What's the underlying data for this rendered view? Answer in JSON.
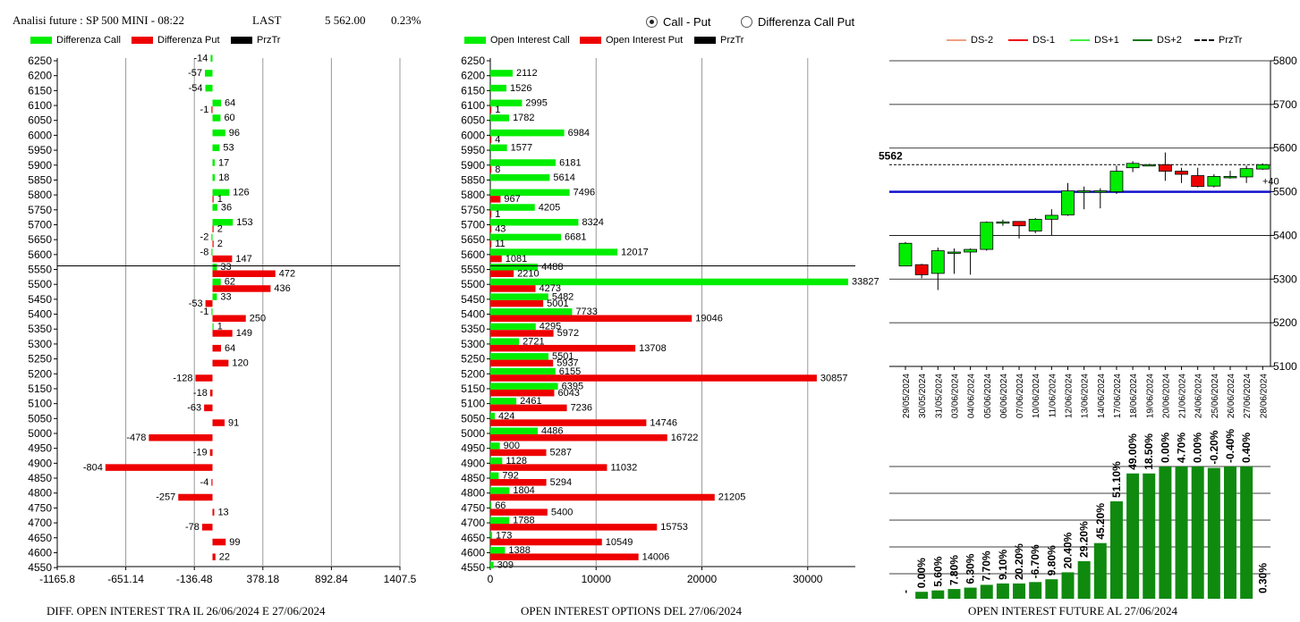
{
  "header": {
    "title": "Analisi future : SP 500 MINI - 08:22",
    "last_label": "LAST",
    "last_value": "5 562.00",
    "change": "0.23%"
  },
  "radio": [
    {
      "label": "Call - Put",
      "selected": true
    },
    {
      "label": "Differenza Call Put",
      "selected": false
    }
  ],
  "panel1": {
    "legend": [
      {
        "label": "Differenza Call",
        "color": "#00ee00"
      },
      {
        "label": "Differenza Put",
        "color": "#ee0000"
      },
      {
        "label": "PrzTr",
        "color": "#000000"
      }
    ],
    "title": "DIFF. OPEN INTEREST TRA IL 26/06/2024 E 27/06/2024"
  },
  "panel2": {
    "legend": [
      {
        "label": "Open Interest Call",
        "color": "#00ee00"
      },
      {
        "label": "Open Interest Put",
        "color": "#ee0000"
      },
      {
        "label": "PrzTr",
        "color": "#000000"
      }
    ],
    "title": "OPEN INTEREST OPTIONS DEL 27/06/2024"
  },
  "panel3": {
    "legend": [
      {
        "label": "DS-2",
        "color": "#f0a080",
        "style": "solid"
      },
      {
        "label": "DS-1",
        "color": "#ee0000",
        "style": "solid"
      },
      {
        "label": "DS+1",
        "color": "#44ee44",
        "style": "solid"
      },
      {
        "label": "DS+2",
        "color": "#117711",
        "style": "solid"
      },
      {
        "label": "PrzTr",
        "color": "#000000",
        "style": "dashed"
      }
    ],
    "title": "OPEN INTEREST FUTURE AL 27/06/2024"
  },
  "chart_data": [
    {
      "type": "bar",
      "orientation": "horizontal",
      "categories": [
        "6250",
        "6200",
        "6150",
        "6100",
        "6050",
        "6000",
        "5950",
        "5900",
        "5850",
        "5800",
        "5750",
        "5700",
        "5650",
        "5600",
        "5550",
        "5500",
        "5450",
        "5400",
        "5350",
        "5300",
        "5250",
        "5200",
        "5150",
        "5100",
        "5050",
        "5000",
        "4950",
        "4900",
        "4850",
        "4800",
        "4750",
        "4700",
        "4650",
        "4600",
        "4550"
      ],
      "series": [
        {
          "name": "Differenza Call",
          "values": [
            -14,
            -57,
            -54,
            64,
            60,
            96,
            53,
            17,
            18,
            126,
            36,
            153,
            -2,
            -8,
            33,
            62,
            33,
            -1,
            1,
            null,
            null,
            null,
            null,
            null,
            null,
            null,
            null,
            null,
            null,
            null,
            null,
            null,
            null,
            null,
            null
          ]
        },
        {
          "name": "Differenza Put",
          "values": [
            null,
            null,
            null,
            -1,
            null,
            null,
            null,
            null,
            null,
            1,
            null,
            2,
            2,
            147,
            472,
            436,
            -53,
            250,
            149,
            64,
            120,
            -128,
            -18,
            -63,
            91,
            -478,
            -19,
            -804,
            -4,
            -257,
            13,
            -78,
            99,
            22,
            null
          ]
        }
      ],
      "xticks": [
        "-1165.8",
        "-651.14",
        "-136.48",
        "378.18",
        "892.84",
        "1407.5"
      ],
      "xlim": [
        -1165.8,
        1407.5
      ],
      "przTr": 5562
    },
    {
      "type": "bar",
      "orientation": "horizontal",
      "categories": [
        "6250",
        "6200",
        "6150",
        "6100",
        "6050",
        "6000",
        "5950",
        "5900",
        "5850",
        "5800",
        "5750",
        "5700",
        "5650",
        "5600",
        "5550",
        "5500",
        "5450",
        "5400",
        "5350",
        "5300",
        "5250",
        "5200",
        "5150",
        "5100",
        "5050",
        "5000",
        "4950",
        "4900",
        "4850",
        "4800",
        "4750",
        "4700",
        "4650",
        "4600",
        "4550"
      ],
      "series": [
        {
          "name": "Open Interest Call",
          "values": [
            null,
            2112,
            1526,
            2995,
            1782,
            6984,
            1577,
            6181,
            5614,
            7496,
            4205,
            8324,
            6681,
            12017,
            4488,
            33827,
            5482,
            7733,
            4295,
            2721,
            5501,
            6155,
            6395,
            2461,
            424,
            4486,
            900,
            1128,
            792,
            1804,
            66,
            1788,
            173,
            1388,
            309
          ]
        },
        {
          "name": "Open Interest Put",
          "values": [
            null,
            null,
            null,
            1,
            null,
            4,
            null,
            8,
            null,
            967,
            1,
            43,
            11,
            1081,
            2210,
            4273,
            5001,
            19046,
            5972,
            13708,
            5937,
            30857,
            6043,
            7236,
            14746,
            16722,
            5287,
            11032,
            5294,
            21205,
            5400,
            15753,
            10549,
            14006,
            null
          ]
        }
      ],
      "xticks": [
        "0",
        "10000",
        "20000",
        "30000"
      ],
      "xlim": [
        0,
        34500
      ],
      "przTr": 5562
    },
    {
      "type": "candlestick",
      "dates": [
        "29/05/2024",
        "30/05/2024",
        "31/05/2024",
        "03/06/2024",
        "04/06/2024",
        "05/06/2024",
        "06/06/2024",
        "07/06/2024",
        "10/06/2024",
        "11/06/2024",
        "12/06/2024",
        "13/06/2024",
        "14/06/2024",
        "17/06/2024",
        "18/06/2024",
        "19/06/2024",
        "20/06/2024",
        "21/06/2024",
        "24/06/2024",
        "25/06/2024",
        "26/06/2024",
        "27/06/2024",
        "28/06/2024"
      ],
      "ohlc": [
        [
          5330,
          5385,
          5330,
          5382
        ],
        [
          5333,
          5335,
          5302,
          5310
        ],
        [
          5313,
          5372,
          5275,
          5365
        ],
        [
          5360,
          5370,
          5312,
          5362
        ],
        [
          5362,
          5370,
          5310,
          5368
        ],
        [
          5368,
          5432,
          5365,
          5430
        ],
        [
          5428,
          5436,
          5422,
          5431
        ],
        [
          5432,
          5432,
          5393,
          5422
        ],
        [
          5410,
          5440,
          5405,
          5437
        ],
        [
          5437,
          5460,
          5400,
          5446
        ],
        [
          5447,
          5520,
          5445,
          5502
        ],
        [
          5502,
          5512,
          5460,
          5502
        ],
        [
          5502,
          5508,
          5462,
          5502
        ],
        [
          5500,
          5560,
          5495,
          5547
        ],
        [
          5555,
          5570,
          5545,
          5565
        ],
        [
          5562,
          5564,
          5560,
          5562
        ],
        [
          5562,
          5590,
          5525,
          5547
        ],
        [
          5547,
          5555,
          5520,
          5540
        ],
        [
          5537,
          5555,
          5510,
          5512
        ],
        [
          5513,
          5540,
          5510,
          5535
        ],
        [
          5534,
          5548,
          5530,
          5535
        ],
        [
          5534,
          5560,
          5520,
          5553
        ],
        [
          5552,
          5565,
          5550,
          5562
        ]
      ],
      "last": 5562,
      "last_label": "5562",
      "support_level": 5500,
      "offset_label": "+40",
      "yticks": [
        "5800",
        "5700",
        "5600",
        "5500",
        "5400",
        "5300",
        "5200",
        "5100"
      ],
      "ylim": [
        5100,
        5800
      ]
    },
    {
      "type": "bar",
      "categories": [
        "29/05/2024",
        "30/05/2024",
        "31/05/2024",
        "03/06/2024",
        "04/06/2024",
        "05/06/2024",
        "06/06/2024",
        "07/06/2024",
        "10/06/2024",
        "11/06/2024",
        "12/06/2024",
        "13/06/2024",
        "14/06/2024",
        "17/06/2024",
        "18/06/2024",
        "19/06/2024",
        "20/06/2024",
        "21/06/2024",
        "24/06/2024",
        "25/06/2024",
        "26/06/2024",
        "27/06/2024",
        "28/06/2024"
      ],
      "values": [
        0.0,
        0.5,
        0.6,
        0.7,
        0.8,
        1.0,
        1.1,
        1.1,
        1.2,
        1.4,
        1.9,
        2.7,
        4.0,
        7.0,
        9.0,
        9.0,
        9.5,
        9.5,
        9.5,
        9.4,
        9.5,
        9.5,
        0
      ],
      "labels": [
        "-",
        "0.00%",
        "5.60%",
        "7.80%",
        "6.30%",
        "7.70%",
        "9.10%",
        "20.20%",
        "-6.70%",
        "9.80%",
        "20.40%",
        "29.20%",
        "45.20%",
        "51.10%",
        "49.00%",
        "18.50%",
        "0.00%",
        "4.70%",
        "0.00%",
        "-0.20%",
        "-0.40%",
        "0.40%",
        "0.30%"
      ]
    }
  ]
}
